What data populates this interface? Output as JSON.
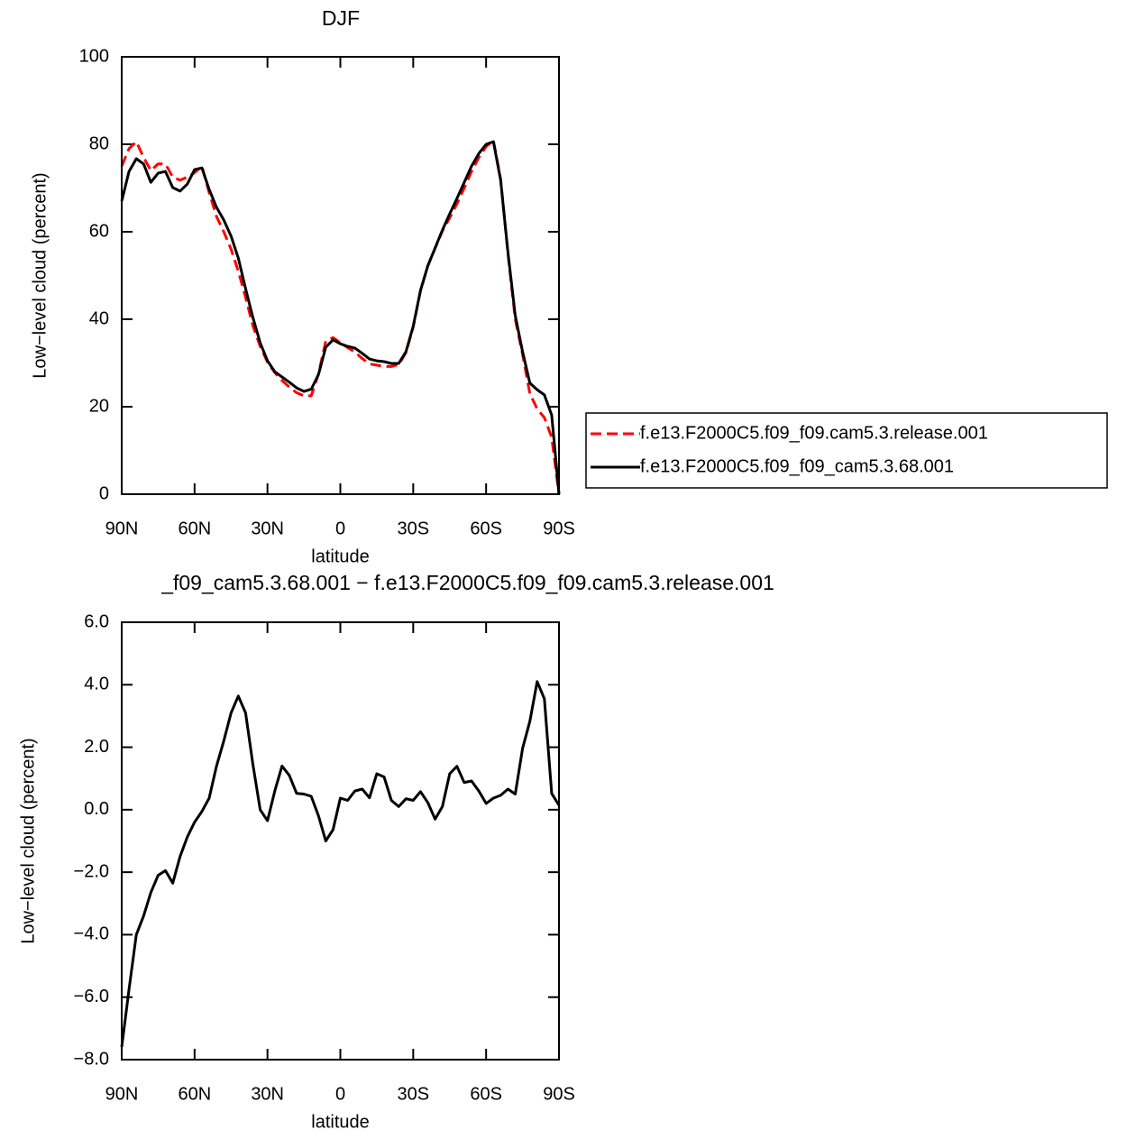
{
  "chart_data": [
    {
      "type": "line",
      "title": "DJF",
      "xlabel": "latitude",
      "ylabel": "Low−level cloud (percent)",
      "x": [
        90,
        87,
        84,
        81,
        78,
        75,
        72,
        69,
        66,
        63,
        60,
        57,
        54,
        51,
        48,
        45,
        42,
        39,
        36,
        33,
        30,
        27,
        24,
        21,
        18,
        15,
        12,
        9,
        6,
        3,
        0,
        -3,
        -6,
        -9,
        -12,
        -15,
        -18,
        -21,
        -24,
        -27,
        -30,
        -33,
        -36,
        -39,
        -42,
        -45,
        -48,
        -51,
        -54,
        -57,
        -60,
        -63,
        -66,
        -69,
        -72,
        -75,
        -78,
        -81,
        -84,
        -87,
        -90
      ],
      "xlim": [
        90,
        -90
      ],
      "xticks": [
        {
          "value": 90,
          "label": "90N"
        },
        {
          "value": 60,
          "label": "60N"
        },
        {
          "value": 30,
          "label": "30N"
        },
        0,
        {
          "value": -30,
          "label": "30S"
        },
        {
          "value": -60,
          "label": "60S"
        },
        {
          "value": -90,
          "label": "90S"
        }
      ],
      "ylim": [
        0,
        100
      ],
      "yticks": [
        0,
        20,
        40,
        60,
        80,
        100
      ],
      "legend": "right",
      "series": [
        {
          "name": "f.e13.F2000C5.f09_f09.cam5.3.release.001",
          "color": "#ff0000",
          "dash": "dashed",
          "values": [
            75,
            79,
            80.6,
            77,
            74,
            75.5,
            75.5,
            72.5,
            71.8,
            72.5,
            73.5,
            75,
            69,
            63.5,
            60,
            56,
            51,
            45,
            38.5,
            33.8,
            30.2,
            27.8,
            26,
            24.5,
            23.2,
            22.5,
            22.5,
            27.5,
            35,
            35.8,
            34.6,
            33.5,
            32.5,
            31,
            29.8,
            29.5,
            29.2,
            29.2,
            29.6,
            32.4,
            38.2,
            46.5,
            52.2,
            56.2,
            60.2,
            63.2,
            66.4,
            70,
            73.8,
            77,
            79.5,
            80.8,
            72,
            55,
            40,
            32,
            23,
            19.5,
            17.5,
            13,
            0
          ]
        },
        {
          "name": "f.e13.F2000C5.f09_f09_cam5.3.68.001",
          "color": "#000000",
          "dash": "solid",
          "values": [
            67,
            73.8,
            76.7,
            75.5,
            71.3,
            73.4,
            73.8,
            70.1,
            69.3,
            70.9,
            74.2,
            74.6,
            69.7,
            65.6,
            62.7,
            59,
            54,
            47,
            40.4,
            34.6,
            30.5,
            28,
            26.8,
            25.6,
            24.3,
            23.5,
            24,
            27.4,
            33.6,
            35.3,
            34.4,
            33.8,
            33.4,
            32.2,
            30.9,
            30.5,
            30.3,
            29.9,
            29.9,
            32.6,
            38.4,
            46.6,
            52.2,
            56.3,
            60.4,
            64.1,
            67.6,
            71.3,
            75,
            77.9,
            80,
            80.6,
            71.8,
            55.3,
            40.8,
            32.6,
            25.4,
            23.9,
            22.7,
            18.1,
            0
          ]
        }
      ]
    },
    {
      "type": "line",
      "title": "_f09_cam5.3.68.001 − f.e13.F2000C5.f09_f09.cam5.3.release.001",
      "xlabel": "latitude",
      "ylabel": "Low−level cloud (percent)",
      "x": [
        90,
        87,
        84,
        81,
        78,
        75,
        72,
        69,
        66,
        63,
        60,
        57,
        54,
        51,
        48,
        45,
        42,
        39,
        36,
        33,
        30,
        27,
        24,
        21,
        18,
        15,
        12,
        9,
        6,
        3,
        0,
        -3,
        -6,
        -9,
        -12,
        -15,
        -18,
        -21,
        -24,
        -27,
        -30,
        -33,
        -36,
        -39,
        -42,
        -45,
        -48,
        -51,
        -54,
        -57,
        -60,
        -63,
        -66,
        -69,
        -72,
        -75,
        -78,
        -81,
        -84,
        -87,
        -90
      ],
      "xlim": [
        90,
        -90
      ],
      "xticks": [
        {
          "value": 90,
          "label": "90N"
        },
        {
          "value": 60,
          "label": "60N"
        },
        {
          "value": 30,
          "label": "30N"
        },
        0,
        {
          "value": -30,
          "label": "30S"
        },
        {
          "value": -60,
          "label": "60S"
        },
        {
          "value": -90,
          "label": "90S"
        }
      ],
      "ylim": [
        -8,
        6
      ],
      "yticks": [
        {
          "value": -8,
          "label": "−8.0"
        },
        {
          "value": -6,
          "label": "−6.0"
        },
        {
          "value": -4,
          "label": "−4.0"
        },
        {
          "value": -2,
          "label": "−2.0"
        },
        {
          "value": 0,
          "label": "0.0"
        },
        {
          "value": 2,
          "label": "2.0"
        },
        {
          "value": 4,
          "label": "4.0"
        },
        {
          "value": 6,
          "label": "6.0"
        }
      ],
      "series": [
        {
          "color": "#000000",
          "dash": "solid",
          "values": [
            -7.6,
            -5.75,
            -4,
            -3.4,
            -2.65,
            -2.1,
            -1.95,
            -2.35,
            -1.5,
            -0.87,
            -0.4,
            -0.06,
            0.37,
            1.39,
            2.2,
            3.1,
            3.64,
            3.1,
            1.45,
            0,
            -0.35,
            0.6,
            1.4,
            1.1,
            0.52,
            0.5,
            0.43,
            -0.2,
            -1,
            -0.64,
            0.37,
            0.3,
            0.6,
            0.66,
            0.38,
            1.15,
            1.05,
            0.3,
            0.1,
            0.35,
            0.3,
            0.58,
            0.23,
            -0.3,
            0.1,
            1.15,
            1.39,
            0.87,
            0.92,
            0.6,
            0.2,
            0.37,
            0.46,
            0.66,
            0.5,
            1.96,
            2.83,
            4.1,
            3.55,
            0.52,
            0.14
          ]
        }
      ]
    }
  ]
}
